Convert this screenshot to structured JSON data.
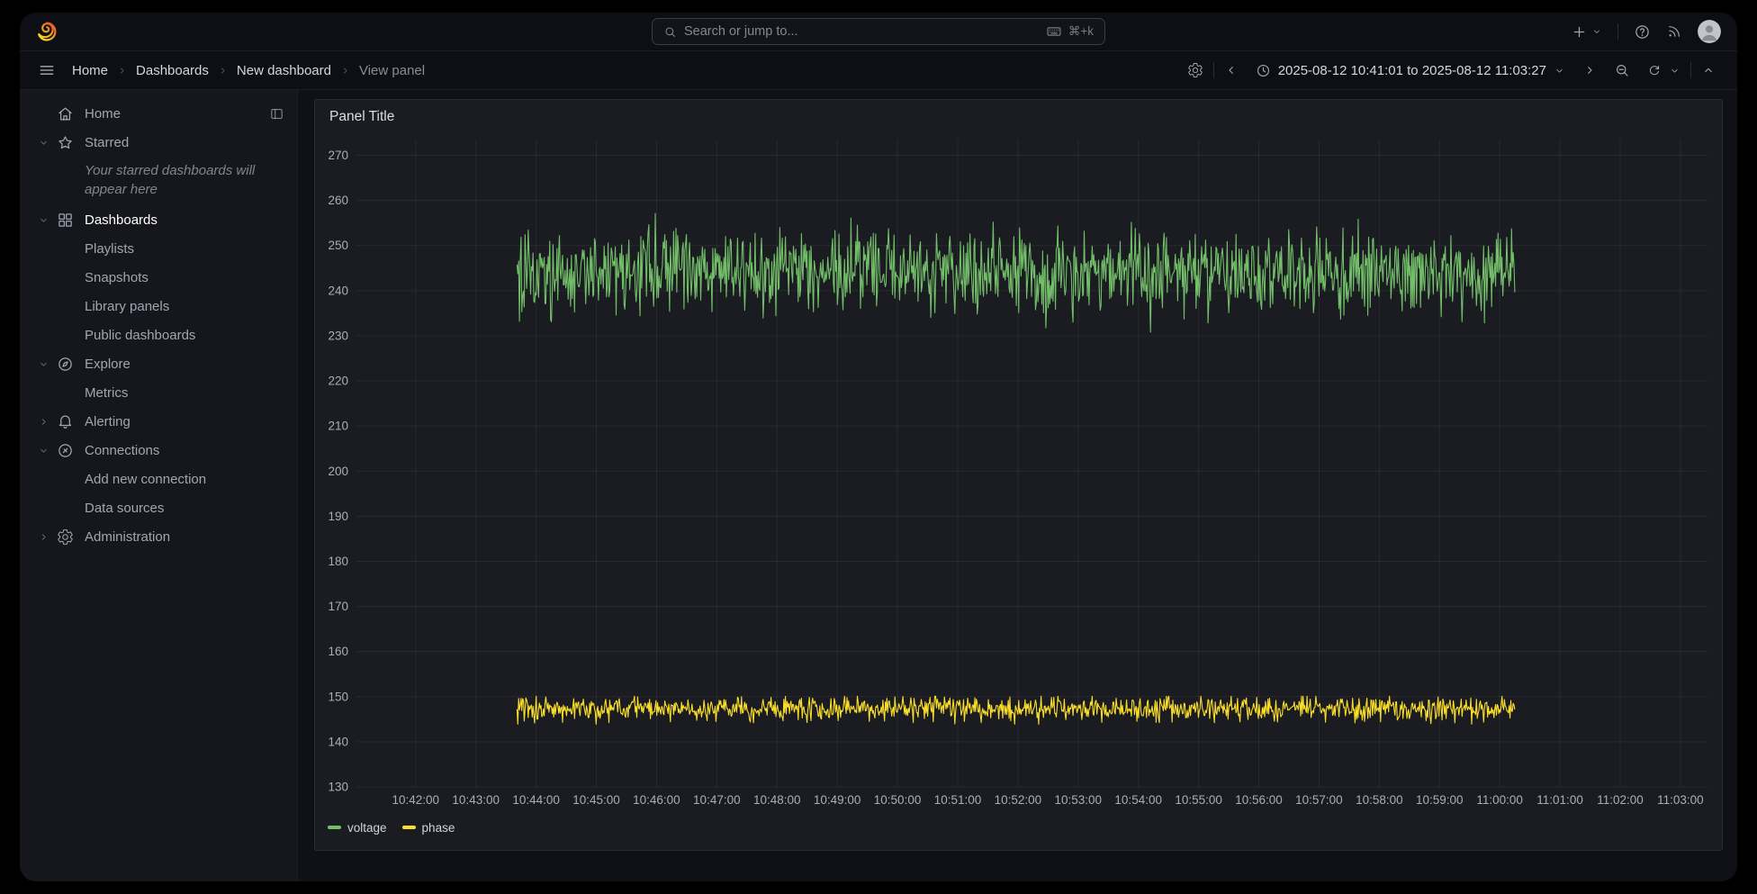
{
  "topbar": {
    "logo_icon": "grafana-logo",
    "search": {
      "icon": "search-icon",
      "placeholder": "Search or jump to...",
      "shortcut_icon": "keyboard-icon",
      "shortcut": "⌘+k"
    },
    "actions": [
      {
        "name": "new-button",
        "icon": "plus-icon",
        "has_caret": true
      },
      {
        "name": "help-button",
        "icon": "help-icon"
      },
      {
        "name": "news-button",
        "icon": "rss-icon"
      },
      {
        "name": "profile-button",
        "icon": "avatar"
      }
    ]
  },
  "toolbar": {
    "menu_icon": "hamburger-icon",
    "breadcrumbs": [
      {
        "label": "Home"
      },
      {
        "label": "Dashboards"
      },
      {
        "label": "New dashboard"
      },
      {
        "label": "View panel",
        "current": true
      }
    ],
    "settings_icon": "gear-icon",
    "time_range": "2025-08-12 10:41:01 to 2025-08-12 11:03:27",
    "time_icons": [
      "chevron-left-icon",
      "clock-icon",
      "chevron-down-icon",
      "chevron-right-icon",
      "zoom-out-icon",
      "refresh-icon",
      "chevron-up-icon"
    ]
  },
  "sidebar": {
    "items": [
      {
        "label": "Home",
        "icon": "home-icon",
        "level": 0,
        "chevron": null,
        "trailing": "dock"
      },
      {
        "label": "Starred",
        "icon": "star-icon",
        "level": 0,
        "chevron": "down"
      },
      {
        "type": "hint",
        "label": "Your starred dashboards will appear here"
      },
      {
        "label": "Dashboards",
        "icon": "apps-icon",
        "level": 0,
        "chevron": "down",
        "active": true
      },
      {
        "label": "Playlists",
        "level": 1
      },
      {
        "label": "Snapshots",
        "level": 1
      },
      {
        "label": "Library panels",
        "level": 1
      },
      {
        "label": "Public dashboards",
        "level": 1
      },
      {
        "label": "Explore",
        "icon": "compass-icon",
        "level": 0,
        "chevron": "down"
      },
      {
        "label": "Metrics",
        "level": 1
      },
      {
        "label": "Alerting",
        "icon": "bell-icon",
        "level": 0,
        "chevron": "right"
      },
      {
        "label": "Connections",
        "icon": "plug-icon",
        "level": 0,
        "chevron": "down"
      },
      {
        "label": "Add new connection",
        "level": 1
      },
      {
        "label": "Data sources",
        "level": 1
      },
      {
        "label": "Administration",
        "icon": "gear-icon",
        "level": 0,
        "chevron": "right"
      }
    ]
  },
  "chart_data": {
    "type": "line",
    "title": "Panel Title",
    "grid": true,
    "legend_position": "bottom-left",
    "x_axis": {
      "start": "10:41:01",
      "end": "11:03:27",
      "tick_labels": [
        "10:42:00",
        "10:43:00",
        "10:44:00",
        "10:45:00",
        "10:46:00",
        "10:47:00",
        "10:48:00",
        "10:49:00",
        "10:50:00",
        "10:51:00",
        "10:52:00",
        "10:53:00",
        "10:54:00",
        "10:55:00",
        "10:56:00",
        "10:57:00",
        "10:58:00",
        "10:59:00",
        "11:00:00",
        "11:01:00",
        "11:02:00",
        "11:03:00"
      ]
    },
    "y_axis": {
      "range": [
        130,
        273.5
      ],
      "ticks": [
        130,
        140,
        150,
        160,
        170,
        180,
        190,
        200,
        210,
        220,
        230,
        240,
        250,
        260,
        270
      ]
    },
    "series": [
      {
        "name": "voltage",
        "color": "#73bf69",
        "data_start": "10:43:41",
        "data_end": "11:00:15",
        "approx_mean": 244,
        "approx_min": 231,
        "approx_max": 258,
        "character": "dense high-frequency noise",
        "synth": {
          "seed": 1718,
          "points": 1250,
          "base": 244,
          "spread": 9.0,
          "spike_prob": 0.05,
          "spike_amp": 6,
          "clamp": [
            230.8,
            258.2
          ]
        }
      },
      {
        "name": "phase",
        "color": "#fade2a",
        "data_start": "10:43:41",
        "data_end": "11:00:15",
        "approx_mean": 147.4,
        "approx_min": 144,
        "approx_max": 150,
        "character": "dense low-amplitude noise",
        "synth": {
          "seed": 811,
          "points": 1250,
          "base": 147.3,
          "spread": 2.6,
          "spike_prob": 0.05,
          "spike_amp": 2.4,
          "clamp": [
            143.9,
            150.1
          ]
        }
      }
    ],
    "colors": {
      "grid": "rgba(204,204,220,0.08)",
      "tick_text": "rgba(204,204,220,0.82)"
    }
  }
}
